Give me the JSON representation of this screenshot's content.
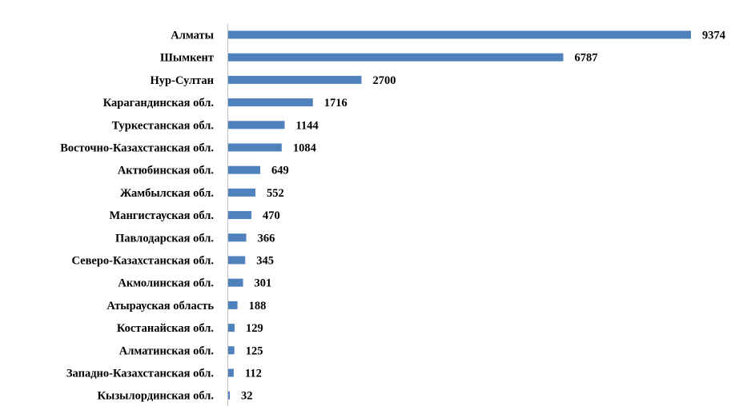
{
  "chart_data": {
    "type": "bar",
    "orientation": "horizontal",
    "categories": [
      "Алматы",
      "Шымкент",
      "Нур-Султан",
      "Карагандинская обл.",
      "Туркестанская обл.",
      "Восточно-Казахстанская обл.",
      "Актюбинская обл.",
      "Жамбылская обл.",
      "Мангистауская обл.",
      "Павлодарская обл.",
      "Северо-Казахстанская обл.",
      "Акмолинская обл.",
      "Атырауская область",
      "Костанайская обл.",
      "Алматинская обл.",
      "Западно-Казахстанская обл.",
      "Кызылординская обл."
    ],
    "values": [
      9374,
      6787,
      2700,
      1716,
      1144,
      1084,
      649,
      552,
      470,
      366,
      345,
      301,
      188,
      129,
      125,
      112,
      32
    ],
    "title": "",
    "xlabel": "",
    "ylabel": "",
    "xlim": [
      0,
      9374
    ],
    "grid": false,
    "legend": "none",
    "data_labels": true,
    "bar_color": "#4f81bd"
  }
}
